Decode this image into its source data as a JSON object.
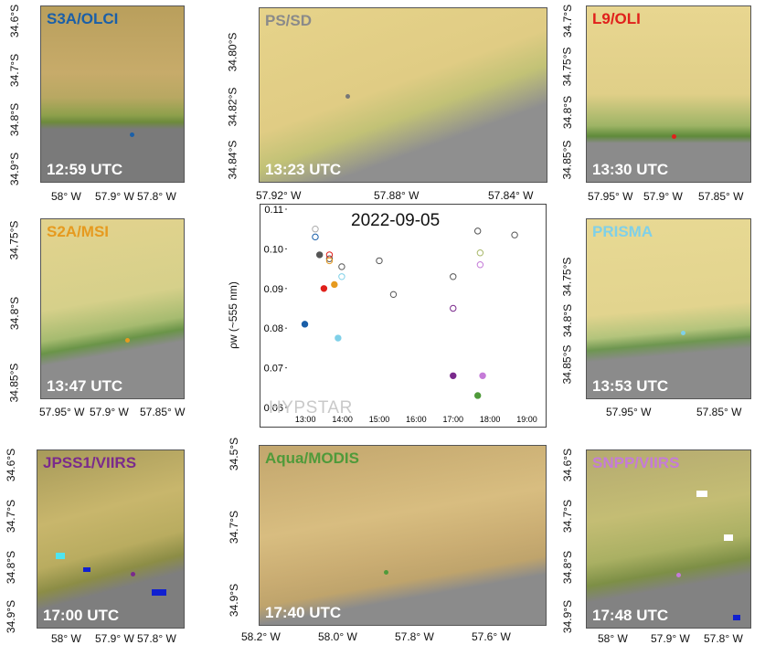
{
  "panels": {
    "s3a": {
      "sensor": "S3A/OLCI",
      "time": "12:59 UTC",
      "sensor_color": "#1a5fa8",
      "xticks": [
        "58° W",
        "57.9° W",
        "57.8° W"
      ],
      "yticks": [
        "34.6°S",
        "34.7°S",
        "34.8°S",
        "34.9°S"
      ]
    },
    "pssd": {
      "sensor": "PS/SD",
      "time": "13:23 UTC",
      "sensor_color": "#8a8a8a",
      "xticks": [
        "57.92° W",
        "57.88° W",
        "57.84° W"
      ],
      "yticks": [
        "34.80°S",
        "34.82°S",
        "34.84°S"
      ]
    },
    "l9": {
      "sensor": "L9/OLI",
      "time": "13:30 UTC",
      "sensor_color": "#e0201b",
      "xticks": [
        "57.95° W",
        "57.9° W",
        "57.85° W"
      ],
      "yticks": [
        "34.7°S",
        "34.75°S",
        "34.8°S",
        "34.85°S"
      ]
    },
    "s2a": {
      "sensor": "S2A/MSI",
      "time": "13:47 UTC",
      "sensor_color": "#e69a1f",
      "xticks": [
        "57.95° W",
        "57.9° W",
        "57.85° W"
      ],
      "yticks": [
        "34.75°S",
        "34.8°S",
        "34.85°S"
      ]
    },
    "prisma": {
      "sensor": "PRISMA",
      "time": "13:53 UTC",
      "sensor_color": "#7fd0e8",
      "xticks": [
        "57.95° W",
        "57.85° W"
      ],
      "yticks": [
        "34.75°S",
        "34.8°S",
        "34.85°S"
      ]
    },
    "jpss1": {
      "sensor": "JPSS1/VIIRS",
      "time": "17:00 UTC",
      "sensor_color": "#7a2a8c",
      "xticks": [
        "58° W",
        "57.9° W",
        "57.8° W"
      ],
      "yticks": [
        "34.6°S",
        "34.7°S",
        "34.8°S",
        "34.9°S"
      ]
    },
    "aqua": {
      "sensor": "Aqua/MODIS",
      "time": "17:40 UTC",
      "sensor_color": "#4f9a3a",
      "xticks": [
        "58.2° W",
        "58.0° W",
        "57.8° W",
        "57.6° W"
      ],
      "yticks": [
        "34.5°S",
        "34.7°S",
        "34.9°S"
      ]
    },
    "snpp": {
      "sensor": "SNPP/VIIRS",
      "time": "17:48 UTC",
      "sensor_color": "#c57bd8",
      "xticks": [
        "58° W",
        "57.9° W",
        "57.8° W"
      ],
      "yticks": [
        "34.6°S",
        "34.7°S",
        "34.8°S",
        "34.9°S"
      ]
    }
  },
  "chart_data": {
    "type": "scatter",
    "title": "2022-09-05",
    "ylabel": "ρw (~555 nm)",
    "watermark": "HYPSTAR",
    "x_ticks": [
      "13:00",
      "14:00",
      "15:00",
      "16:00",
      "17:00",
      "18:00",
      "19:00"
    ],
    "y_ticks": [
      "0.06",
      "0.07",
      "0.08",
      "0.09",
      "0.10",
      "0.11"
    ],
    "xlim": [
      "12:30",
      "19:20"
    ],
    "ylim": [
      0.06,
      0.11
    ],
    "series": [
      {
        "color": "#1a5fa8",
        "marker": "filled",
        "points": [
          [
            "12:59",
            0.081
          ]
        ]
      },
      {
        "color": "#555555",
        "marker": "filled",
        "points": [
          [
            "13:23",
            0.0985
          ]
        ]
      },
      {
        "color": "#e0201b",
        "marker": "filled",
        "points": [
          [
            "13:30",
            0.09
          ]
        ]
      },
      {
        "color": "#e69a1f",
        "marker": "filled",
        "points": [
          [
            "13:47",
            0.091
          ]
        ]
      },
      {
        "color": "#7fd0e8",
        "marker": "filled",
        "points": [
          [
            "13:53",
            0.0775
          ]
        ]
      },
      {
        "color": "#7a2a8c",
        "marker": "filled",
        "points": [
          [
            "17:00",
            0.068
          ]
        ]
      },
      {
        "color": "#4f9a3a",
        "marker": "filled",
        "points": [
          [
            "17:40",
            0.063
          ]
        ]
      },
      {
        "color": "#c57bd8",
        "marker": "filled",
        "points": [
          [
            "17:48",
            0.068
          ]
        ]
      },
      {
        "color": "#555555",
        "marker": "open",
        "points": [
          [
            "13:39",
            0.0975
          ],
          [
            "13:59",
            0.0955
          ],
          [
            "15:00",
            0.097
          ],
          [
            "15:23",
            0.0885
          ],
          [
            "17:00",
            0.093
          ],
          [
            "17:40",
            0.1045
          ],
          [
            "18:40",
            0.1035
          ]
        ]
      },
      {
        "color": "#aaaaaa",
        "marker": "open",
        "points": [
          [
            "13:16",
            0.105
          ]
        ]
      },
      {
        "color": "#1a5fa8",
        "marker": "open",
        "points": [
          [
            "13:16",
            0.103
          ]
        ]
      },
      {
        "color": "#e0201b",
        "marker": "open",
        "points": [
          [
            "13:39",
            0.0985
          ]
        ]
      },
      {
        "color": "#e69a1f",
        "marker": "open",
        "points": [
          [
            "13:39",
            0.097
          ]
        ]
      },
      {
        "color": "#7fd0e8",
        "marker": "open",
        "points": [
          [
            "13:59",
            0.093
          ]
        ]
      },
      {
        "color": "#7a2a8c",
        "marker": "open",
        "points": [
          [
            "17:00",
            0.085
          ]
        ]
      },
      {
        "color": "#a8b86a",
        "marker": "open",
        "points": [
          [
            "17:44",
            0.099
          ]
        ]
      },
      {
        "color": "#c57bd8",
        "marker": "open",
        "points": [
          [
            "17:44",
            0.096
          ]
        ]
      }
    ]
  }
}
